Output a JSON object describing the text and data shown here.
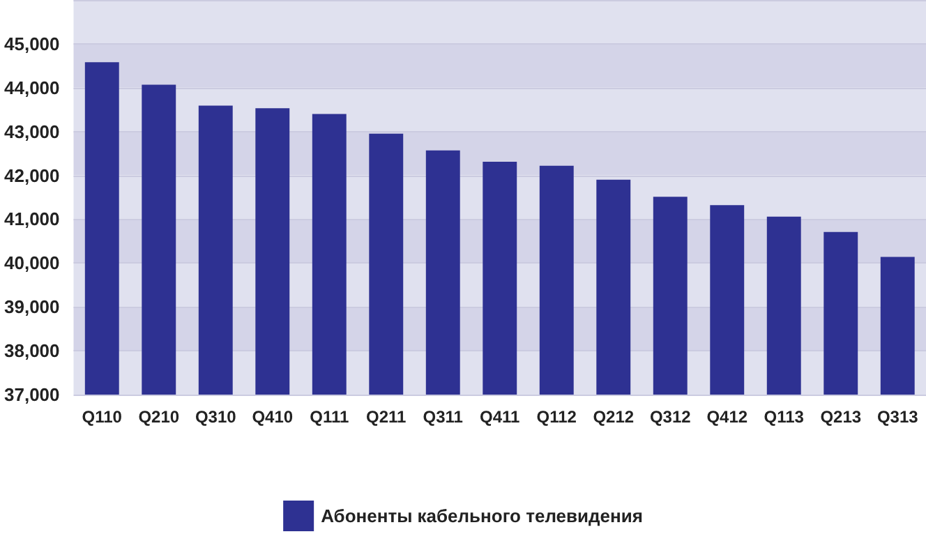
{
  "chart_data": {
    "type": "bar",
    "categories": [
      "Q110",
      "Q210",
      "Q310",
      "Q410",
      "Q111",
      "Q211",
      "Q311",
      "Q411",
      "Q112",
      "Q212",
      "Q312",
      "Q412",
      "Q113",
      "Q213",
      "Q313"
    ],
    "series": [
      {
        "name": "Абоненты кабельного телевидения",
        "color": "#2e3192",
        "values": [
          44580,
          44070,
          43590,
          43530,
          43400,
          42950,
          42570,
          42310,
          42220,
          41900,
          41510,
          41320,
          41060,
          40710,
          40140
        ]
      }
    ],
    "ylim": [
      37000,
      46000
    ],
    "yticks": [
      {
        "value": 37000,
        "label": "37,000"
      },
      {
        "value": 38000,
        "label": "38,000"
      },
      {
        "value": 39000,
        "label": "39,000"
      },
      {
        "value": 40000,
        "label": "40,000"
      },
      {
        "value": 41000,
        "label": "41,000"
      },
      {
        "value": 42000,
        "label": "42,000"
      },
      {
        "value": 43000,
        "label": "43,000"
      },
      {
        "value": 44000,
        "label": "44,000"
      },
      {
        "value": 45000,
        "label": "45,000"
      }
    ],
    "grid": true,
    "legend": "bottom"
  }
}
